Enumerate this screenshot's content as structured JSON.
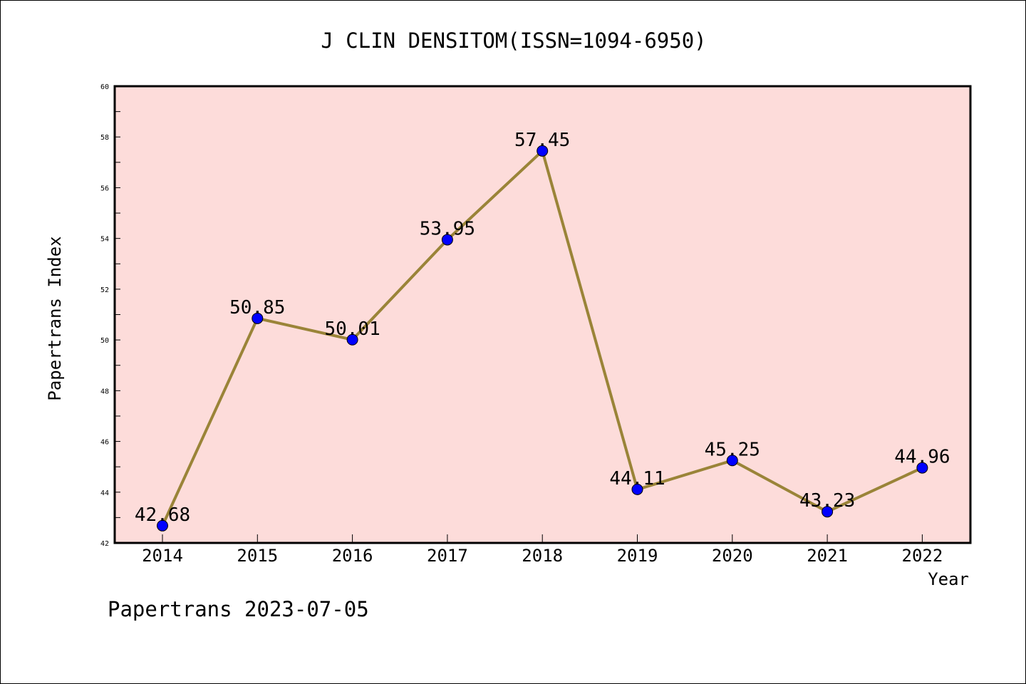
{
  "chart_data": {
    "type": "line",
    "title": "J CLIN DENSITOM(ISSN=1094-6950)",
    "xlabel": "Year",
    "ylabel": "Papertrans Index",
    "categories": [
      "2014",
      "2015",
      "2016",
      "2017",
      "2018",
      "2019",
      "2020",
      "2021",
      "2022"
    ],
    "series": [
      {
        "values": [
          42.68,
          50.85,
          50.01,
          53.95,
          57.45,
          44.11,
          45.25,
          43.23,
          44.96
        ],
        "labels": [
          "42.68",
          "50.85",
          "50.01",
          "53.95",
          "57.45",
          "44.11",
          "45.25",
          "43.23",
          "44.96"
        ]
      }
    ],
    "ylim": [
      42,
      60
    ],
    "yticks": [
      "42",
      "44",
      "46",
      "48",
      "50",
      "52",
      "54",
      "56",
      "58",
      "60"
    ],
    "grid": false,
    "legend": "none",
    "colors": {
      "plot_background": "#fddcda",
      "line": "#9a8438",
      "marker": "#0000ff"
    }
  },
  "footer": "Papertrans 2023-07-05"
}
